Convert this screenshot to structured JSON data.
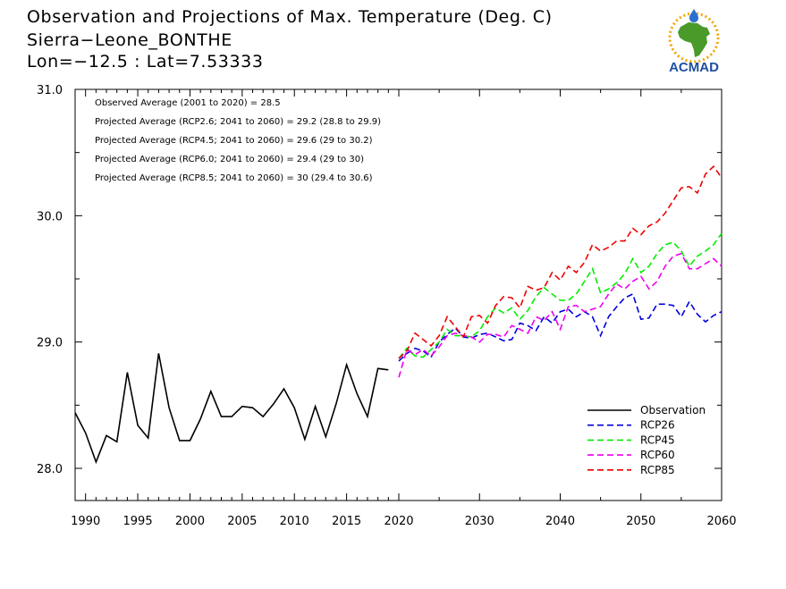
{
  "header": {
    "title_line1": "Observation and Projections of Max. Temperature (Deg. C)",
    "title_line2": "Sierra−Leone_BONTHE",
    "title_line3": "Lon=−12.5 : Lat=7.53333"
  },
  "logo": {
    "text": "ACMAD",
    "colors": {
      "africa": "#4a9a2a",
      "ring": "#f2a300",
      "text": "#1f4fa0",
      "drop": "#2a6fd0"
    }
  },
  "annotations": [
    "Observed Average (2001 to 2020) = 28.5",
    "Projected Average (RCP2.6; 2041 to 2060) = 29.2 (28.8 to 29.9)",
    "Projected Average (RCP4.5; 2041 to 2060) = 29.6 (29 to 30.2)",
    "Projected Average (RCP6.0; 2041 to 2060) = 29.4 (29 to 30)",
    "Projected Average (RCP8.5; 2041 to 2060) = 30 (29.4 to 30.6)"
  ],
  "chart_data": {
    "type": "line",
    "title": "Observation and Projections of Max. Temperature (Deg. C)",
    "xlabel": "",
    "ylabel": "",
    "ylim": [
      27.75,
      31.0
    ],
    "y_ticks": [
      "28.0",
      "29.0",
      "30.0",
      "31.0"
    ],
    "x_ticks_left": [
      "1990",
      "1995",
      "2000",
      "2005",
      "2010",
      "2015",
      "2020"
    ],
    "x_ticks_right": [
      "2020",
      "2030",
      "2040",
      "2050",
      "2060"
    ],
    "legend_position": "bottom-right",
    "series": [
      {
        "name": "Observation",
        "color": "#000000",
        "dash": false,
        "x": [
          1989,
          1990,
          1991,
          1992,
          1993,
          1994,
          1995,
          1996,
          1997,
          1998,
          1999,
          2000,
          2001,
          2002,
          2003,
          2004,
          2005,
          2006,
          2007,
          2008,
          2009,
          2010,
          2011,
          2012,
          2013,
          2014,
          2015,
          2016,
          2017,
          2018,
          2019
        ],
        "values": [
          28.44,
          28.28,
          28.05,
          28.26,
          28.21,
          28.76,
          28.34,
          28.24,
          28.91,
          28.48,
          28.22,
          28.22,
          28.39,
          28.61,
          28.41,
          28.41,
          28.49,
          28.48,
          28.41,
          28.51,
          28.63,
          28.48,
          28.23,
          28.49,
          28.25,
          28.51,
          28.82,
          28.59,
          28.41,
          28.79,
          28.78
        ]
      },
      {
        "name": "RCP26",
        "color": "#0000dd",
        "dash": true,
        "x": [
          2020,
          2021,
          2022,
          2023,
          2024,
          2025,
          2026,
          2027,
          2028,
          2029,
          2030,
          2031,
          2032,
          2033,
          2034,
          2035,
          2036,
          2037,
          2038,
          2039,
          2040,
          2041,
          2042,
          2043,
          2044,
          2045,
          2046,
          2047,
          2048,
          2049,
          2050,
          2051,
          2052,
          2053,
          2054,
          2055,
          2056,
          2057,
          2058,
          2059,
          2060
        ],
        "values": [
          28.85,
          28.91,
          28.95,
          28.93,
          28.88,
          29.0,
          29.06,
          29.11,
          29.04,
          29.03,
          29.06,
          29.07,
          29.04,
          29.01,
          29.02,
          29.15,
          29.13,
          29.09,
          29.2,
          29.15,
          29.24,
          29.26,
          29.2,
          29.24,
          29.2,
          29.05,
          29.2,
          29.28,
          29.35,
          29.38,
          29.18,
          29.19,
          29.3,
          29.3,
          29.29,
          29.2,
          29.32,
          29.22,
          29.16,
          29.21,
          29.24
        ]
      },
      {
        "name": "RCP45",
        "color": "#00ee00",
        "dash": true,
        "x": [
          2020,
          2021,
          2022,
          2023,
          2024,
          2025,
          2026,
          2027,
          2028,
          2029,
          2030,
          2031,
          2032,
          2033,
          2034,
          2035,
          2036,
          2037,
          2038,
          2039,
          2040,
          2041,
          2042,
          2043,
          2044,
          2045,
          2046,
          2047,
          2048,
          2049,
          2050,
          2051,
          2052,
          2053,
          2054,
          2055,
          2056,
          2057,
          2058,
          2059,
          2060
        ],
        "values": [
          28.87,
          28.95,
          28.89,
          28.88,
          28.94,
          29.0,
          29.1,
          29.05,
          29.05,
          29.04,
          29.09,
          29.2,
          29.27,
          29.23,
          29.27,
          29.18,
          29.25,
          29.36,
          29.43,
          29.38,
          29.33,
          29.33,
          29.38,
          29.48,
          29.58,
          29.39,
          29.42,
          29.47,
          29.54,
          29.66,
          29.55,
          29.6,
          29.7,
          29.77,
          29.79,
          29.72,
          29.6,
          29.68,
          29.72,
          29.77,
          29.86
        ]
      },
      {
        "name": "RCP60",
        "color": "#ee00ee",
        "dash": true,
        "x": [
          2020,
          2021,
          2022,
          2023,
          2024,
          2025,
          2026,
          2027,
          2028,
          2029,
          2030,
          2031,
          2032,
          2033,
          2034,
          2035,
          2036,
          2037,
          2038,
          2039,
          2040,
          2041,
          2042,
          2043,
          2044,
          2045,
          2046,
          2047,
          2048,
          2049,
          2050,
          2051,
          2052,
          2053,
          2054,
          2055,
          2056,
          2057,
          2058,
          2059,
          2060
        ],
        "values": [
          28.72,
          28.94,
          28.9,
          28.94,
          28.89,
          28.96,
          29.05,
          29.07,
          29.05,
          29.04,
          29.0,
          29.06,
          29.06,
          29.04,
          29.13,
          29.1,
          29.07,
          29.2,
          29.17,
          29.24,
          29.1,
          29.28,
          29.29,
          29.24,
          29.26,
          29.28,
          29.38,
          29.46,
          29.42,
          29.48,
          29.52,
          29.42,
          29.48,
          29.6,
          29.68,
          29.7,
          29.58,
          29.58,
          29.62,
          29.66,
          29.6
        ]
      },
      {
        "name": "RCP85",
        "color": "#ee0000",
        "dash": true,
        "x": [
          2020,
          2021,
          2022,
          2023,
          2024,
          2025,
          2026,
          2027,
          2028,
          2029,
          2030,
          2031,
          2032,
          2033,
          2034,
          2035,
          2036,
          2037,
          2038,
          2039,
          2040,
          2041,
          2042,
          2043,
          2044,
          2045,
          2046,
          2047,
          2048,
          2049,
          2050,
          2051,
          2052,
          2053,
          2054,
          2055,
          2056,
          2057,
          2058,
          2059,
          2060
        ],
        "values": [
          28.87,
          28.93,
          29.07,
          29.02,
          28.97,
          29.05,
          29.2,
          29.12,
          29.04,
          29.2,
          29.21,
          29.15,
          29.29,
          29.36,
          29.35,
          29.27,
          29.44,
          29.41,
          29.43,
          29.55,
          29.49,
          29.6,
          29.55,
          29.63,
          29.77,
          29.72,
          29.75,
          29.8,
          29.8,
          29.9,
          29.85,
          29.92,
          29.95,
          30.02,
          30.12,
          30.22,
          30.23,
          30.18,
          30.33,
          30.39,
          30.3
        ]
      }
    ]
  }
}
